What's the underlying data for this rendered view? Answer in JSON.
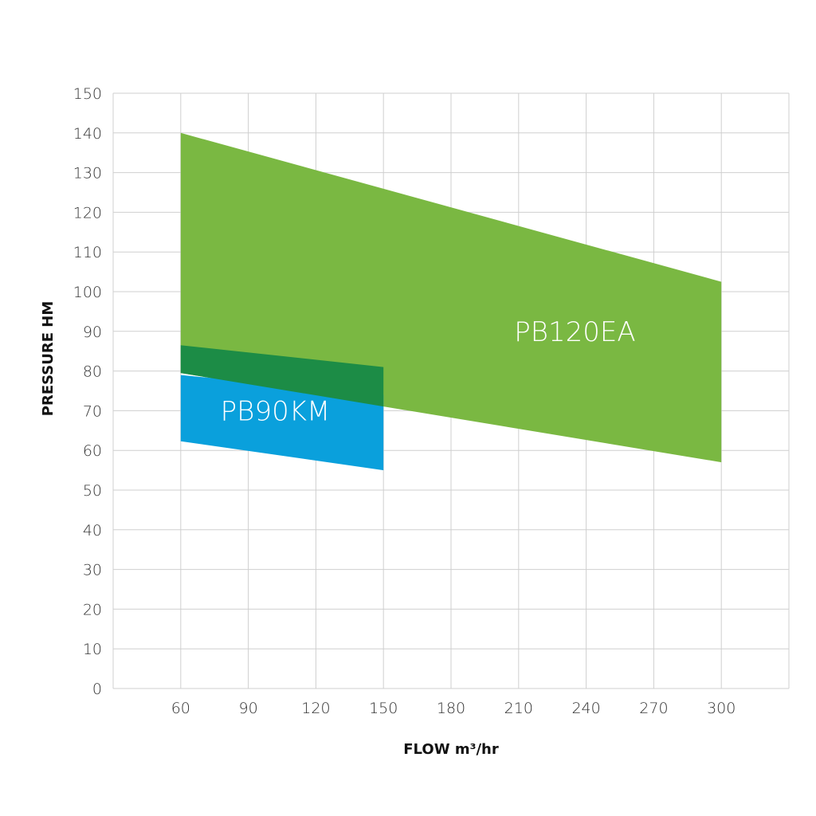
{
  "chart_data": {
    "type": "area",
    "title": "",
    "xlabel": "FLOW m³/hr",
    "ylabel": "PRESSURE HM",
    "xlim": [
      30,
      330
    ],
    "ylim": [
      0,
      150
    ],
    "x_ticks": [
      60,
      90,
      120,
      150,
      180,
      210,
      240,
      270,
      300
    ],
    "y_ticks": [
      0,
      10,
      20,
      30,
      40,
      50,
      60,
      70,
      80,
      90,
      100,
      110,
      120,
      130,
      140,
      150
    ],
    "grid": true,
    "series": [
      {
        "name": "PB120EA",
        "color": "#7ab842",
        "upper": [
          [
            60,
            140
          ],
          [
            300,
            102.5
          ]
        ],
        "lower": [
          [
            60,
            79.5
          ],
          [
            300,
            57
          ]
        ],
        "label_pos": [
          235,
          90
        ]
      },
      {
        "name": "PB90KM",
        "color": "#0aa0dc",
        "upper": [
          [
            60,
            79
          ],
          [
            150,
            74
          ]
        ],
        "lower": [
          [
            60,
            62.3
          ],
          [
            150,
            55
          ]
        ],
        "label_pos": [
          102,
          70
        ]
      }
    ],
    "overlap_color": "#1c8c46",
    "overlap_upper": [
      [
        60,
        86.5
      ],
      [
        150,
        81
      ]
    ]
  }
}
